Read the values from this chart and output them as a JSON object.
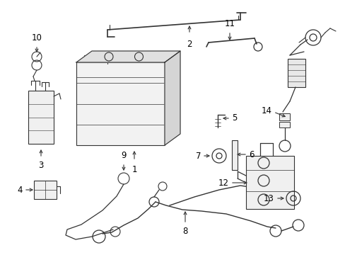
{
  "bg_color": "#ffffff",
  "line_color": "#333333",
  "label_color": "#000000",
  "fig_width": 4.89,
  "fig_height": 3.6,
  "dpi": 100,
  "label_fs": 7.5,
  "lw": 0.8
}
